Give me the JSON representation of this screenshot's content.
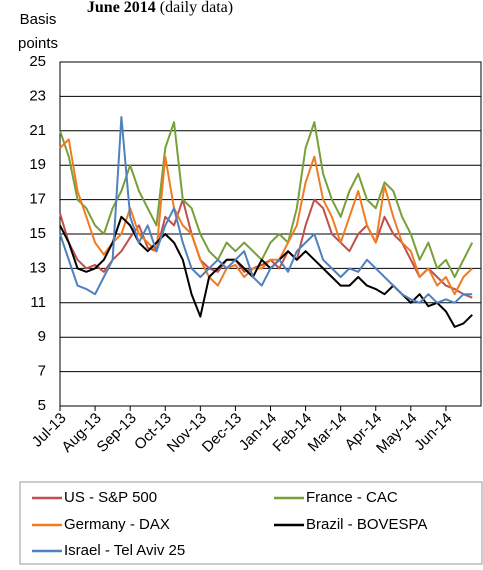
{
  "chart_data": {
    "type": "line",
    "title": "June 2014",
    "subtitle": "(daily data)",
    "y_label": [
      "Basis",
      "points"
    ],
    "categories": [
      "Jul-13",
      null,
      null,
      null,
      "Aug-13",
      null,
      null,
      null,
      "Sep-13",
      null,
      null,
      null,
      "Oct-13",
      null,
      null,
      null,
      "Nov-13",
      null,
      null,
      null,
      "Dec-13",
      null,
      null,
      null,
      "Jan-14",
      null,
      null,
      null,
      "Feb-14",
      null,
      null,
      null,
      "Mar-14",
      null,
      null,
      null,
      "Apr-14",
      null,
      null,
      null,
      "May-14",
      null,
      null,
      null,
      "Jun-14",
      null,
      null,
      null
    ],
    "ylim": [
      5,
      25
    ],
    "yticks": [
      5,
      7,
      9,
      11,
      13,
      15,
      17,
      19,
      21,
      23,
      25
    ],
    "grid": true,
    "series": [
      {
        "name": "US - S&P 500",
        "color": "#c0504d",
        "values": [
          16.2,
          14.5,
          13.5,
          13.0,
          13.2,
          12.8,
          13.5,
          14.0,
          14.8,
          15.5,
          14.2,
          14.0,
          16.0,
          15.5,
          17.0,
          15.0,
          13.5,
          13.0,
          12.8,
          13.5,
          13.5,
          12.8,
          13.0,
          13.2,
          13.5,
          13.0,
          14.0,
          13.5,
          15.5,
          17.0,
          16.5,
          15.0,
          14.5,
          14.0,
          15.0,
          15.5,
          14.5,
          16.0,
          15.0,
          14.5,
          13.5,
          12.5,
          13.0,
          12.5,
          12.0,
          11.8,
          11.5,
          11.3
        ]
      },
      {
        "name": "France - CAC",
        "color": "#77a03a",
        "values": [
          21.0,
          19.5,
          17.0,
          16.5,
          15.5,
          15.0,
          16.5,
          17.5,
          19.0,
          17.5,
          16.5,
          15.5,
          20.0,
          21.5,
          17.0,
          16.5,
          15.0,
          14.0,
          13.5,
          14.5,
          14.0,
          14.5,
          14.0,
          13.5,
          14.5,
          15.0,
          14.5,
          16.5,
          20.0,
          21.5,
          18.5,
          17.0,
          16.0,
          17.5,
          18.5,
          17.0,
          16.5,
          18.0,
          17.5,
          16.0,
          15.0,
          13.5,
          14.5,
          13.0,
          13.5,
          12.5,
          13.5,
          14.5
        ]
      },
      {
        "name": "Germany - DAX",
        "color": "#f07c22",
        "values": [
          20.0,
          20.5,
          17.5,
          16.0,
          14.5,
          13.8,
          14.5,
          15.0,
          16.5,
          15.0,
          14.5,
          14.0,
          19.5,
          16.5,
          15.5,
          15.0,
          13.5,
          12.5,
          12.0,
          13.0,
          13.2,
          12.5,
          13.0,
          13.0,
          13.5,
          13.5,
          14.5,
          15.5,
          18.0,
          19.5,
          17.0,
          16.0,
          14.5,
          16.0,
          17.5,
          15.5,
          14.5,
          17.8,
          16.0,
          14.5,
          14.0,
          12.5,
          13.0,
          12.0,
          12.5,
          11.5,
          12.5,
          13.0
        ]
      },
      {
        "name": "Brazil - BOVESPA",
        "color": "#000000",
        "values": [
          15.5,
          14.5,
          13.0,
          12.8,
          13.0,
          13.5,
          14.5,
          16.0,
          15.5,
          14.5,
          14.0,
          14.5,
          15.0,
          14.5,
          13.5,
          11.5,
          10.2,
          12.5,
          13.0,
          13.5,
          13.5,
          13.0,
          12.5,
          13.5,
          13.0,
          13.5,
          14.0,
          13.5,
          14.0,
          13.5,
          13.0,
          12.5,
          12.0,
          12.0,
          12.5,
          12.0,
          11.8,
          11.5,
          12.0,
          11.5,
          11.0,
          11.5,
          10.8,
          11.0,
          10.5,
          9.6,
          9.8,
          10.3
        ]
      },
      {
        "name": "Israel - Tel Aviv 25",
        "color": "#4f81bd",
        "values": [
          15.0,
          13.5,
          12.0,
          11.8,
          11.5,
          12.5,
          13.5,
          21.8,
          16.0,
          14.5,
          15.5,
          14.0,
          15.5,
          16.5,
          14.5,
          13.0,
          12.5,
          13.0,
          13.5,
          13.0,
          13.5,
          14.0,
          12.5,
          12.0,
          13.0,
          13.5,
          12.8,
          14.0,
          14.5,
          15.0,
          13.5,
          13.0,
          12.5,
          13.0,
          12.8,
          13.5,
          13.0,
          12.5,
          12.0,
          11.5,
          11.2,
          11.0,
          11.5,
          11.0,
          11.2,
          11.0,
          11.5,
          11.5
        ]
      }
    ]
  }
}
